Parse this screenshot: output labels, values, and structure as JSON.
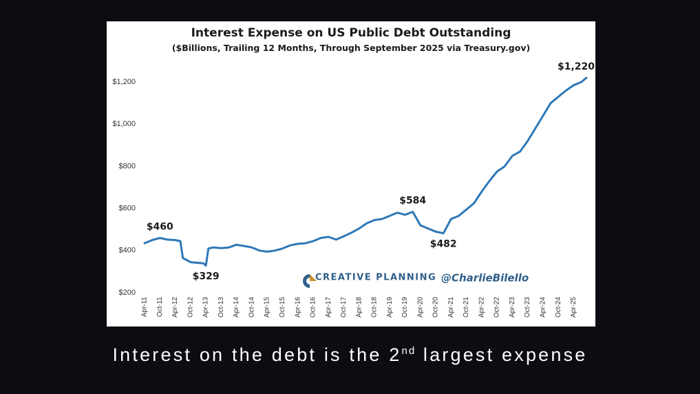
{
  "caption": {
    "text_before": "Interest on the debt is the 2",
    "superscript": "nd",
    "text_after": " largest expense"
  },
  "chart_data": {
    "type": "line",
    "title": "Interest Expense on US Public Debt Outstanding",
    "subtitle": "($Billions, Trailing 12 Months, Through September 2025 via Treasury.gov)",
    "xlabel": "",
    "ylabel": "",
    "ylim": [
      200,
      1220
    ],
    "yticks": [
      200,
      400,
      600,
      800,
      1000,
      1200
    ],
    "ytick_labels": [
      "$200",
      "$400",
      "$600",
      "$800",
      "$1,000",
      "$1,200"
    ],
    "xtick_labels": [
      "Apr-11",
      "Oct-11",
      "Apr-12",
      "Oct-12",
      "Apr-13",
      "Oct-13",
      "Apr-14",
      "Oct-14",
      "Apr-15",
      "Oct-15",
      "Apr-16",
      "Oct-16",
      "Apr-17",
      "Oct-17",
      "Apr-18",
      "Oct-18",
      "Apr-19",
      "Oct-19",
      "Apr-20",
      "Oct-20",
      "Apr-21",
      "Oct-21",
      "Apr-22",
      "Oct-22",
      "Apr-23",
      "Oct-23",
      "Apr-24",
      "Oct-24",
      "Apr-25"
    ],
    "grid": false,
    "line_color": "#2e78b7",
    "series": [
      {
        "x": [
          "2011-04",
          "2011-07",
          "2011-10",
          "2012-01",
          "2012-04",
          "2012-06",
          "2012-07",
          "2012-10",
          "2013-01",
          "2013-03",
          "2013-04",
          "2013-05",
          "2013-07",
          "2013-10",
          "2014-01",
          "2014-04",
          "2014-07",
          "2014-10",
          "2015-01",
          "2015-04",
          "2015-07",
          "2015-10",
          "2016-01",
          "2016-04",
          "2016-07",
          "2016-10",
          "2017-01",
          "2017-04",
          "2017-07",
          "2017-10",
          "2018-01",
          "2018-04",
          "2018-07",
          "2018-10",
          "2019-01",
          "2019-04",
          "2019-07",
          "2019-10",
          "2020-01",
          "2020-04",
          "2020-07",
          "2020-10",
          "2021-01",
          "2021-04",
          "2021-07",
          "2021-10",
          "2022-01",
          "2022-04",
          "2022-07",
          "2022-10",
          "2023-01",
          "2023-04",
          "2023-07",
          "2023-10",
          "2024-01",
          "2024-04",
          "2024-07",
          "2024-10",
          "2025-01",
          "2025-04",
          "2025-07",
          "2025-09"
        ],
        "values": [
          435,
          450,
          460,
          452,
          450,
          445,
          365,
          345,
          342,
          340,
          329,
          410,
          415,
          412,
          415,
          428,
          422,
          415,
          400,
          395,
          400,
          410,
          425,
          432,
          435,
          445,
          460,
          465,
          452,
          468,
          485,
          505,
          530,
          545,
          550,
          565,
          580,
          570,
          584,
          520,
          505,
          490,
          482,
          550,
          565,
          595,
          625,
          680,
          730,
          775,
          800,
          850,
          870,
          920,
          980,
          1040,
          1100,
          1130,
          1160,
          1185,
          1200,
          1220
        ]
      }
    ],
    "annotations": [
      {
        "label": "$460",
        "x": "2011-10",
        "y": 460
      },
      {
        "label": "$329",
        "x": "2013-04",
        "y": 329
      },
      {
        "label": "$584",
        "x": "2020-01",
        "y": 584
      },
      {
        "label": "$482",
        "x": "2021-01",
        "y": 482
      },
      {
        "label": "$1,220",
        "x": "2025-09",
        "y": 1220
      }
    ]
  },
  "watermark": {
    "brand": "CREATIVE PLANNING",
    "handle": "@CharlieBilello",
    "brand_color": "#2e5f8a",
    "logo_accent": "#c8902e"
  }
}
